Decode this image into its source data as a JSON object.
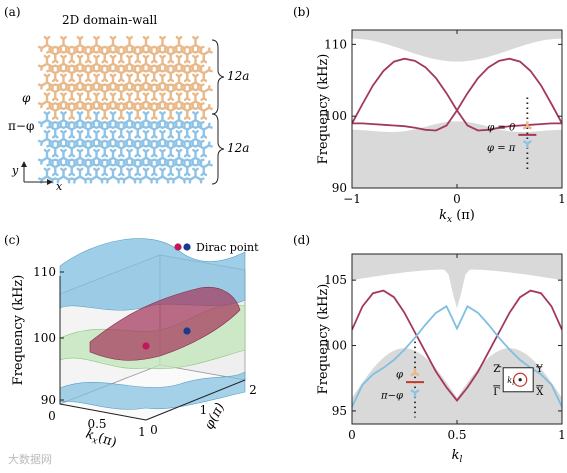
{
  "figure": {
    "panel_labels": [
      "(a)",
      "(b)",
      "(c)",
      "(d)"
    ],
    "watermark": "大数据网"
  },
  "panel_a": {
    "title": "2D domain-wall",
    "upper_phase": "φ",
    "lower_phase": "π−φ",
    "upper_size": "12a",
    "lower_size": "12a",
    "axis_y": "y",
    "axis_x": "x",
    "colors": {
      "upper": "#e8b98a",
      "lower": "#8fc3e6"
    }
  },
  "chart_data": [
    {
      "panel": "b",
      "type": "line",
      "xlabel_var": "k",
      "xlabel_sub": "x",
      "xlabel_unit": " (π)",
      "ylabel": "Frequency (kHz)",
      "xlim": [
        -1,
        1
      ],
      "ylim": [
        90,
        112
      ],
      "xticks": [
        -1,
        0,
        1
      ],
      "yticks": [
        90,
        100,
        110
      ],
      "bulk_color": "#d9d9d9",
      "series": [
        {
          "color": "#a3385b",
          "x": [
            -1,
            -0.9,
            -0.8,
            -0.7,
            -0.6,
            -0.5,
            -0.4,
            -0.3,
            -0.2,
            -0.1,
            0,
            0.1,
            0.2,
            0.3,
            0.4,
            0.5,
            0.6,
            0.7,
            0.8,
            0.9,
            1
          ],
          "y": [
            99.0,
            101.7,
            104.3,
            106.3,
            107.6,
            108.0,
            107.7,
            106.8,
            105.3,
            103.2,
            100.8,
            98.7,
            98.0,
            98.1,
            98.4,
            98.6,
            98.7,
            98.8,
            98.9,
            99.0,
            99.0
          ]
        },
        {
          "color": "#a3385b",
          "x": [
            -1,
            -0.9,
            -0.8,
            -0.7,
            -0.6,
            -0.5,
            -0.4,
            -0.3,
            -0.2,
            -0.1,
            0,
            0.1,
            0.2,
            0.3,
            0.4,
            0.5,
            0.6,
            0.7,
            0.8,
            0.9,
            1
          ],
          "y": [
            99.0,
            99.0,
            98.9,
            98.8,
            98.7,
            98.6,
            98.4,
            98.1,
            98.0,
            98.7,
            100.8,
            103.2,
            105.3,
            106.8,
            107.7,
            108.0,
            107.6,
            106.3,
            104.3,
            101.7,
            99.0
          ]
        }
      ],
      "legend": {
        "upper": "φ = 0",
        "lower": "φ = π"
      }
    },
    {
      "panel": "c",
      "type": "area",
      "zlabel": "Frequency (kHz)",
      "xlabel_var": "k",
      "xlabel_sub": "x",
      "xlabel_unit": "(π)",
      "ylabel": "φ(π)",
      "zticks": [
        90,
        100,
        110
      ],
      "xticks": [
        0,
        0.5,
        1
      ],
      "yticks": [
        0,
        1,
        2
      ],
      "legend": "Dirac point",
      "dirac_colors": [
        "#c2185b",
        "#1a3a8f"
      ]
    },
    {
      "panel": "d",
      "type": "line",
      "xlabel_var": "k",
      "xlabel_sub": "l",
      "ylabel": "Frequency (kHz)",
      "xlim": [
        0,
        1
      ],
      "ylim": [
        94,
        107
      ],
      "xticks": [
        0,
        0.5,
        1
      ],
      "yticks": [
        95,
        100,
        105
      ],
      "bulk_color": "#d9d9d9",
      "series": [
        {
          "color": "#a3385b",
          "x": [
            0,
            0.05,
            0.1,
            0.15,
            0.2,
            0.25,
            0.3,
            0.35,
            0.4,
            0.45,
            0.5,
            0.55,
            0.6,
            0.65,
            0.7,
            0.75,
            0.8,
            0.85,
            0.9,
            0.95,
            1
          ],
          "y": [
            101.2,
            103.0,
            104.0,
            104.2,
            103.7,
            102.5,
            101.0,
            99.5,
            98.0,
            96.8,
            95.8,
            96.8,
            98.0,
            99.5,
            101.0,
            102.5,
            103.7,
            104.2,
            104.0,
            103.0,
            101.2
          ]
        },
        {
          "color": "#7fbfe0",
          "x": [
            0,
            0.05,
            0.1,
            0.15,
            0.2,
            0.25,
            0.3,
            0.35,
            0.4,
            0.45,
            0.5,
            0.55,
            0.6,
            0.65,
            0.7,
            0.75,
            0.8,
            0.85,
            0.9,
            0.95,
            1
          ],
          "y": [
            95.3,
            97.0,
            97.8,
            98.3,
            98.9,
            99.7,
            100.6,
            101.6,
            102.5,
            103.0,
            101.3,
            103.0,
            102.5,
            101.6,
            100.6,
            99.7,
            98.9,
            98.3,
            97.8,
            97.0,
            95.3
          ]
        }
      ],
      "legend": {
        "upper": "φ",
        "lower": "π−φ"
      },
      "bz_labels": {
        "tl": "Z",
        "tr": "Y",
        "bl": "Γ",
        "br": "X",
        "center": "k",
        "center_sub": "l"
      }
    }
  ]
}
